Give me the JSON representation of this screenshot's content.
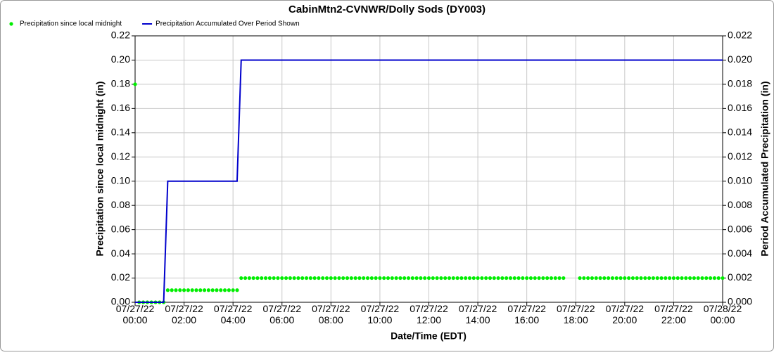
{
  "chart_data": {
    "type": "line",
    "title": "CabinMtn2-CVNWR/Dolly Sods (DY003)",
    "xlabel": "Date/Time (EDT)",
    "ylabel": "Precipitation since local midnight (in)",
    "y2label": "Period Accumulated Precipitation (in)",
    "xlim": [
      "07/27/22 00:00",
      "07/28/22 00:00"
    ],
    "xticks": [
      "07/27/22 00:00",
      "07/27/22 02:00",
      "07/27/22 04:00",
      "07/27/22 06:00",
      "07/27/22 08:00",
      "07/27/22 10:00",
      "07/27/22 12:00",
      "07/27/22 14:00",
      "07/27/22 16:00",
      "07/27/22 18:00",
      "07/27/22 20:00",
      "07/27/22 22:00",
      "07/28/22 00:00"
    ],
    "ylim": [
      0,
      0.22
    ],
    "yticks": [
      {
        "value": 0,
        "label": "0.00"
      },
      {
        "value": 0.02,
        "label": "0.02"
      },
      {
        "value": 0.04,
        "label": "0.04"
      },
      {
        "value": 0.06,
        "label": "0.06"
      },
      {
        "value": 0.08,
        "label": "0.08"
      },
      {
        "value": 0.1,
        "label": "0.10"
      },
      {
        "value": 0.12,
        "label": "0.12"
      },
      {
        "value": 0.14,
        "label": "0.14"
      },
      {
        "value": 0.16,
        "label": "0.16"
      },
      {
        "value": 0.18,
        "label": "0.18"
      },
      {
        "value": 0.2,
        "label": "0.20"
      },
      {
        "value": 0.22,
        "label": "0.22"
      }
    ],
    "y2lim": [
      0,
      0.022
    ],
    "y2ticks": [
      {
        "value": 0,
        "label": "0.000"
      },
      {
        "value": 0.002,
        "label": "0.002"
      },
      {
        "value": 0.004,
        "label": "0.004"
      },
      {
        "value": 0.006,
        "label": "0.006"
      },
      {
        "value": 0.008,
        "label": "0.008"
      },
      {
        "value": 0.01,
        "label": "0.010"
      },
      {
        "value": 0.012,
        "label": "0.012"
      },
      {
        "value": 0.014,
        "label": "0.014"
      },
      {
        "value": 0.016,
        "label": "0.016"
      },
      {
        "value": 0.018,
        "label": "0.018"
      },
      {
        "value": 0.02,
        "label": "0.020"
      },
      {
        "value": 0.022,
        "label": "0.022"
      }
    ],
    "grid": true,
    "series": [
      {
        "name": "Precipitation since local midnight",
        "type": "scatter",
        "color": "#00ee00",
        "x": [
          "07/27/22 00:00",
          "07/27/22 00:10",
          "07/27/22 00:20",
          "07/27/22 00:30",
          "07/27/22 00:40",
          "07/27/22 00:50",
          "07/27/22 01:00",
          "07/27/22 01:10",
          "07/27/22 01:20",
          "07/27/22 01:30",
          "07/27/22 01:40",
          "07/27/22 01:50",
          "07/27/22 02:00",
          "07/27/22 02:10",
          "07/27/22 02:20",
          "07/27/22 02:30",
          "07/27/22 02:40",
          "07/27/22 02:50",
          "07/27/22 03:00",
          "07/27/22 03:10",
          "07/27/22 03:20",
          "07/27/22 03:30",
          "07/27/22 03:40",
          "07/27/22 03:50",
          "07/27/22 04:00",
          "07/27/22 04:10",
          "07/27/22 04:20",
          "07/27/22 04:30",
          "07/27/22 04:40",
          "07/27/22 04:50",
          "07/27/22 05:00",
          "07/27/22 05:10",
          "07/27/22 05:20",
          "07/27/22 05:30",
          "07/27/22 05:40",
          "07/27/22 05:50",
          "07/27/22 06:00",
          "07/27/22 06:10",
          "07/27/22 06:20",
          "07/27/22 06:30",
          "07/27/22 06:40",
          "07/27/22 06:50",
          "07/27/22 07:00",
          "07/27/22 07:10",
          "07/27/22 07:20",
          "07/27/22 07:30",
          "07/27/22 07:40",
          "07/27/22 07:50",
          "07/27/22 08:00",
          "07/27/22 08:10",
          "07/27/22 08:20",
          "07/27/22 08:30",
          "07/27/22 08:40",
          "07/27/22 08:50",
          "07/27/22 09:00",
          "07/27/22 09:10",
          "07/27/22 09:20",
          "07/27/22 09:30",
          "07/27/22 09:40",
          "07/27/22 09:50",
          "07/27/22 10:00",
          "07/27/22 10:10",
          "07/27/22 10:20",
          "07/27/22 10:30",
          "07/27/22 10:40",
          "07/27/22 10:50",
          "07/27/22 11:00",
          "07/27/22 11:10",
          "07/27/22 11:20",
          "07/27/22 11:30",
          "07/27/22 11:40",
          "07/27/22 11:50",
          "07/27/22 12:00",
          "07/27/22 12:10",
          "07/27/22 12:20",
          "07/27/22 12:30",
          "07/27/22 12:40",
          "07/27/22 12:50",
          "07/27/22 13:00",
          "07/27/22 13:10",
          "07/27/22 13:20",
          "07/27/22 13:30",
          "07/27/22 13:40",
          "07/27/22 13:50",
          "07/27/22 14:00",
          "07/27/22 14:10",
          "07/27/22 14:20",
          "07/27/22 14:30",
          "07/27/22 14:40",
          "07/27/22 14:50",
          "07/27/22 15:00",
          "07/27/22 15:10",
          "07/27/22 15:20",
          "07/27/22 15:30",
          "07/27/22 15:40",
          "07/27/22 15:50",
          "07/27/22 16:00",
          "07/27/22 16:10",
          "07/27/22 16:20",
          "07/27/22 16:30",
          "07/27/22 16:40",
          "07/27/22 16:50",
          "07/27/22 17:00",
          "07/27/22 17:10",
          "07/27/22 17:20",
          "07/27/22 17:30",
          "07/27/22 17:40",
          "07/27/22 17:50",
          "07/27/22 18:00",
          "07/27/22 18:10",
          "07/27/22 18:20",
          "07/27/22 18:30",
          "07/27/22 18:40",
          "07/27/22 18:50",
          "07/27/22 19:00",
          "07/27/22 19:10",
          "07/27/22 19:20",
          "07/27/22 19:30",
          "07/27/22 19:40",
          "07/27/22 19:50",
          "07/27/22 20:00",
          "07/27/22 20:10",
          "07/27/22 20:20",
          "07/27/22 20:30",
          "07/27/22 20:40",
          "07/27/22 20:50",
          "07/27/22 21:00",
          "07/27/22 21:10",
          "07/27/22 21:20",
          "07/27/22 21:30",
          "07/27/22 21:40",
          "07/27/22 21:50",
          "07/27/22 22:00",
          "07/27/22 22:10",
          "07/27/22 22:20",
          "07/27/22 22:30",
          "07/27/22 22:40",
          "07/27/22 22:50",
          "07/27/22 23:00",
          "07/27/22 23:10",
          "07/27/22 23:20",
          "07/27/22 23:30",
          "07/27/22 23:40",
          "07/27/22 23:50",
          "07/28/22 00:00"
        ],
        "values": [
          0.18,
          0,
          0,
          0,
          0,
          0,
          0,
          0,
          0.01,
          0.01,
          0.01,
          0.01,
          0.01,
          0.01,
          0.01,
          0.01,
          0.01,
          0.01,
          0.01,
          0.01,
          0.01,
          0.01,
          0.01,
          0.01,
          0.01,
          0.01,
          0.02,
          0.02,
          0.02,
          0.02,
          0.02,
          0.02,
          0.02,
          0.02,
          0.02,
          0.02,
          0.02,
          0.02,
          0.02,
          0.02,
          0.02,
          0.02,
          0.02,
          0.02,
          0.02,
          0.02,
          0.02,
          0.02,
          0.02,
          0.02,
          0.02,
          0.02,
          0.02,
          0.02,
          0.02,
          0.02,
          0.02,
          0.02,
          0.02,
          0.02,
          0.02,
          0.02,
          0.02,
          0.02,
          0.02,
          0.02,
          0.02,
          0.02,
          0.02,
          0.02,
          0.02,
          0.02,
          0.02,
          0.02,
          0.02,
          0.02,
          0.02,
          0.02,
          0.02,
          0.02,
          0.02,
          0.02,
          0.02,
          0.02,
          0.02,
          0.02,
          0.02,
          0.02,
          0.02,
          0.02,
          0.02,
          0.02,
          0.02,
          0.02,
          0.02,
          0.02,
          0.02,
          0.02,
          0.02,
          0.02,
          0.02,
          0.02,
          0.02,
          0.02,
          0.02,
          0.02,
          null,
          null,
          null,
          0.02,
          0.02,
          0.02,
          0.02,
          0.02,
          0.02,
          0.02,
          0.02,
          0.02,
          0.02,
          0.02,
          0.02,
          0.02,
          0.02,
          0.02,
          0.02,
          0.02,
          0.02,
          0.02,
          0.02,
          0.02,
          0.02,
          0.02,
          0.02,
          0.02,
          0.02,
          0.02,
          0.02,
          0.02,
          0.02,
          0.02,
          0.02,
          0.02,
          0.02,
          0.02,
          0.02
        ]
      },
      {
        "name": "Precipitation Accumulated Over Period Shown",
        "type": "line",
        "axis": "y2",
        "color": "#0000cc",
        "x": [
          "07/27/22 00:00",
          "07/27/22 01:10",
          "07/27/22 01:20",
          "07/27/22 04:10",
          "07/27/22 04:20",
          "07/28/22 00:00"
        ],
        "values": [
          0,
          0,
          0.01,
          0.01,
          0.02,
          0.02
        ]
      }
    ]
  }
}
